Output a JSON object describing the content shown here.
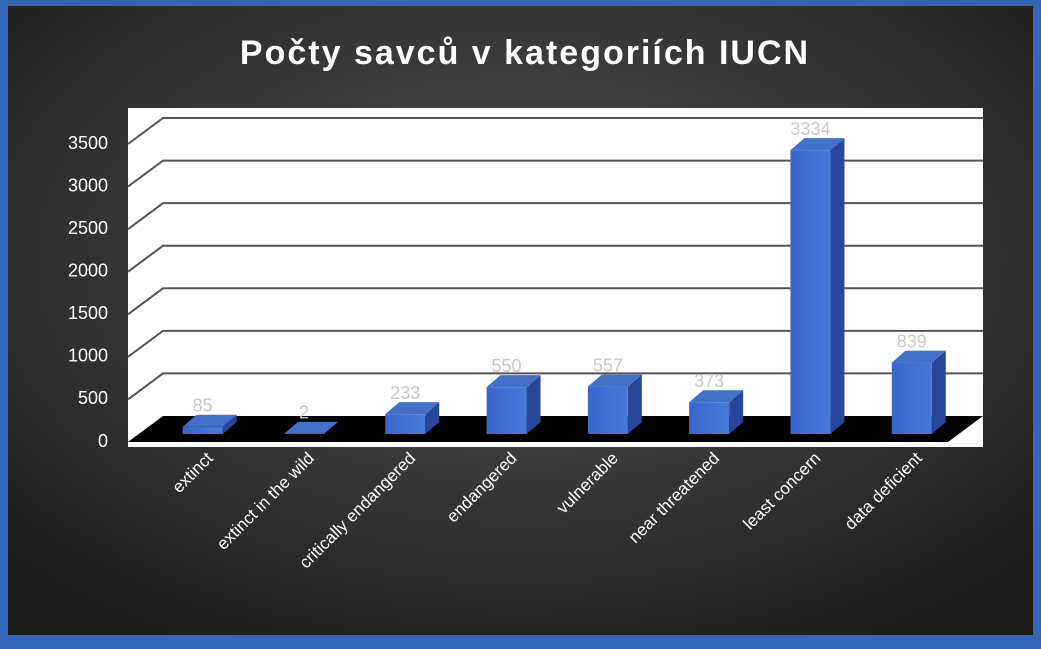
{
  "chart_data": {
    "type": "bar",
    "title": "Počty savců v kategoriích IUCN",
    "categories": [
      "extinct",
      "extinct in the wild",
      "critically endangered",
      "endangered",
      "vulnerable",
      "near threatened",
      "least concern",
      "data deficient"
    ],
    "values": [
      85,
      2,
      233,
      550,
      557,
      373,
      3334,
      839
    ],
    "color": "#4472c4",
    "ylim": [
      0,
      3500
    ],
    "yticks": [
      0,
      500,
      1000,
      1500,
      2000,
      2500,
      3000,
      3500
    ],
    "grid": true
  }
}
